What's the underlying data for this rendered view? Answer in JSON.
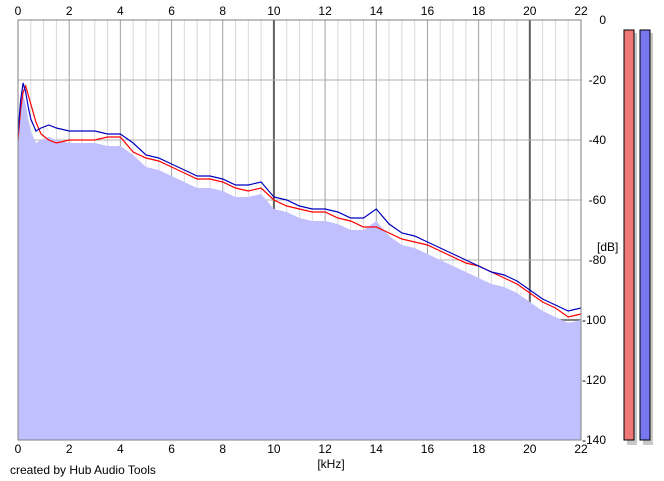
{
  "chart_data": {
    "type": "line",
    "title": "",
    "xlabel": "[kHz]",
    "ylabel": "[dB]",
    "xlim": [
      0,
      22
    ],
    "ylim": [
      -140,
      0
    ],
    "x_ticks": [
      "0",
      "2",
      "4",
      "6",
      "8",
      "10",
      "12",
      "14",
      "16",
      "18",
      "20",
      "22"
    ],
    "y_ticks": [
      "0",
      "-20",
      "-40",
      "-60",
      "-80",
      "-100",
      "-120",
      "-140"
    ],
    "grid": true,
    "series": [
      {
        "color": "#ff0000",
        "x": [
          0,
          0.1,
          0.2,
          0.3,
          0.4,
          0.5,
          0.7,
          0.9,
          1.2,
          1.5,
          2,
          2.5,
          3,
          3.5,
          4,
          4.5,
          5,
          5.5,
          6,
          6.5,
          7,
          7.5,
          8,
          8.5,
          9,
          9.5,
          10,
          10.5,
          11,
          11.5,
          12,
          12.5,
          13,
          13.5,
          14,
          14.5,
          15,
          15.5,
          16,
          16.5,
          17,
          17.5,
          18,
          18.5,
          19,
          19.5,
          20,
          20.5,
          21,
          21.5,
          22
        ],
        "y": [
          -40,
          -30,
          -24,
          -22,
          -25,
          -28,
          -34,
          -38,
          -40,
          -41,
          -40,
          -40,
          -40,
          -39,
          -39,
          -44,
          -46,
          -47,
          -49,
          -51,
          -53,
          -53,
          -54,
          -56,
          -57,
          -56,
          -60,
          -62,
          -63,
          -64,
          -64,
          -66,
          -67,
          -69,
          -69,
          -71,
          -73,
          -74,
          -75,
          -77,
          -79,
          -81,
          -82,
          -84,
          -86,
          -88,
          -91,
          -94,
          -96,
          -99,
          -98
        ]
      },
      {
        "color": "#0000c0",
        "x": [
          0,
          0.1,
          0.2,
          0.3,
          0.4,
          0.5,
          0.7,
          0.9,
          1.2,
          1.5,
          2,
          2.5,
          3,
          3.5,
          4,
          4.5,
          5,
          5.5,
          6,
          6.5,
          7,
          7.5,
          8,
          8.5,
          9,
          9.5,
          10,
          10.5,
          11,
          11.5,
          12,
          12.5,
          13,
          13.5,
          14,
          14.5,
          15,
          15.5,
          16,
          16.5,
          17,
          17.5,
          18,
          18.5,
          19,
          19.5,
          20,
          20.5,
          21,
          21.5,
          22
        ],
        "y": [
          -38,
          -27,
          -21,
          -24,
          -29,
          -33,
          -37,
          -36,
          -35,
          -36,
          -37,
          -37,
          -37,
          -38,
          -38,
          -41,
          -45,
          -46,
          -48,
          -50,
          -52,
          -52,
          -53,
          -55,
          -55,
          -54,
          -59,
          -60,
          -62,
          -63,
          -63,
          -64,
          -66,
          -66,
          -63,
          -68,
          -71,
          -72,
          -74,
          -76,
          -78,
          -80,
          -82,
          -84,
          -85,
          -87,
          -90,
          -93,
          -95,
          -97,
          -96
        ]
      }
    ],
    "meters": [
      {
        "color": "#ee7777"
      },
      {
        "color": "#7777ee"
      }
    ]
  },
  "footer": {
    "credit": "created by Hub Audio Tools"
  }
}
